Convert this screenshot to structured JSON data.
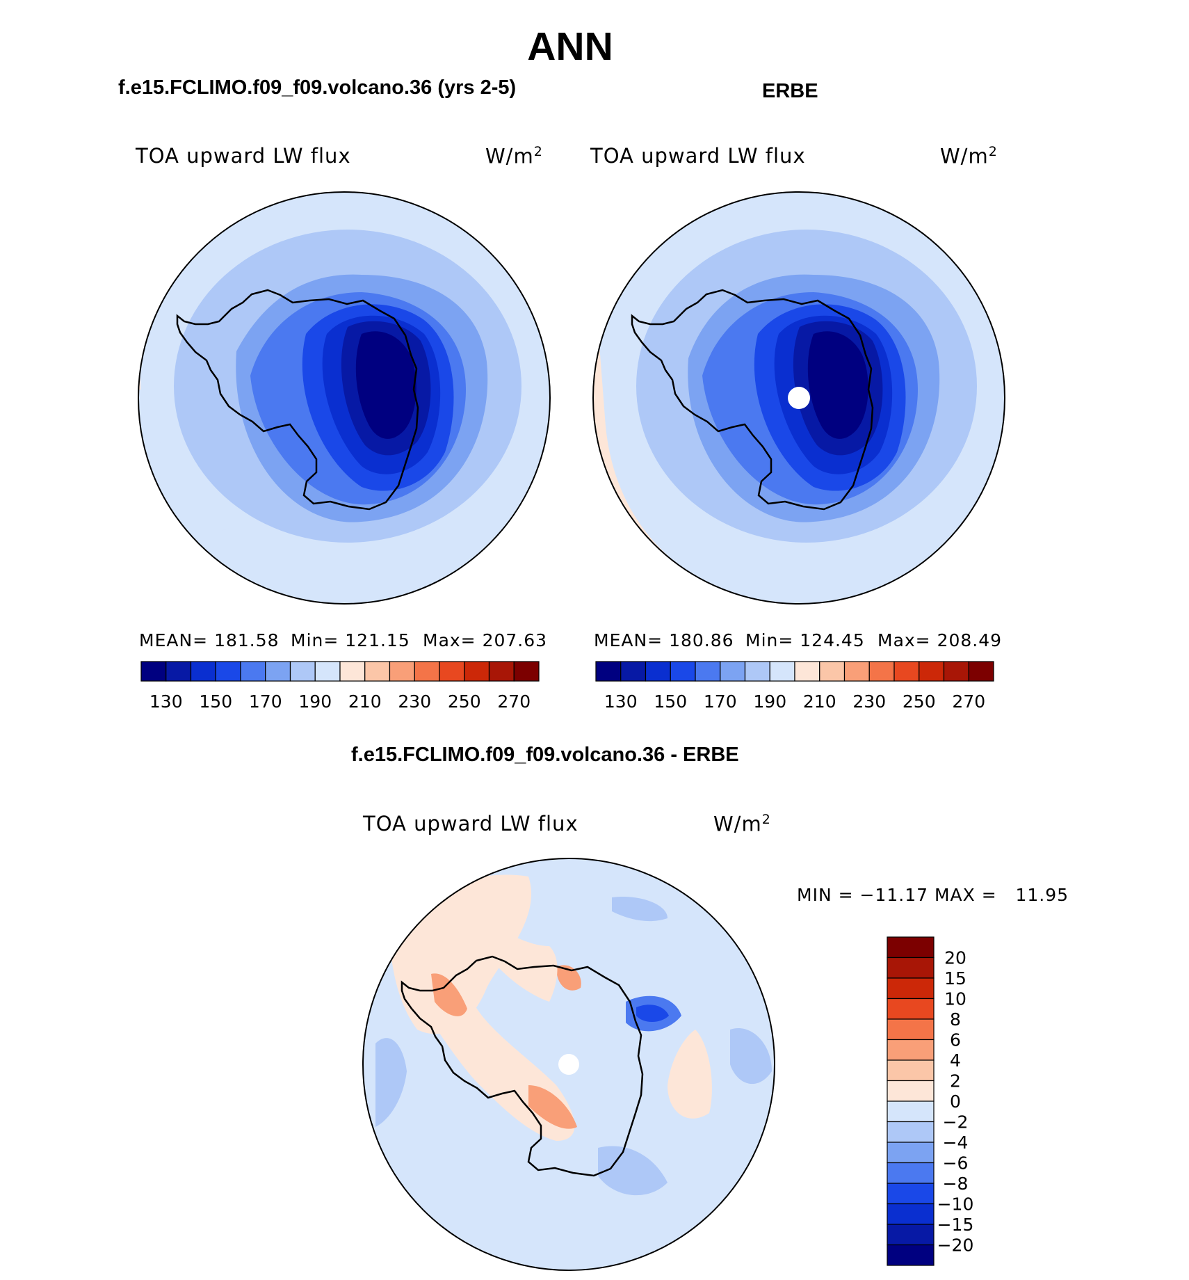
{
  "figure": {
    "title": "ANN",
    "panel_model_title": "f.e15.FCLIMO.f09_f09.volcano.36 (yrs 2-5)",
    "panel_obs_title": "ERBE",
    "panel_diff_title": "f.e15.FCLIMO.f09_f09.volcano.36 - ERBE"
  },
  "chart_data": [
    {
      "type": "heatmap",
      "title": "f.e15.FCLIMO.f09_f09.volcano.36 (yrs 2-5)",
      "variable": "TOA upward LW flux",
      "units": "W/m",
      "units_exp": "2",
      "projection": "south-polar-stereographic",
      "stats": {
        "mean": "MEAN=  181.58",
        "min": "Min=  121.15",
        "max": "Max=  207.63"
      },
      "levels": [
        130,
        140,
        150,
        160,
        170,
        180,
        190,
        200,
        210,
        220,
        230,
        240,
        250,
        260,
        270
      ],
      "tick_labels": [
        "130",
        "150",
        "170",
        "190",
        "210",
        "230",
        "250",
        "270"
      ],
      "colors": [
        "#000080",
        "#0719a5",
        "#0a2fd0",
        "#1a48e8",
        "#4b79f0",
        "#7ca3f2",
        "#aec8f7",
        "#d5e5fb",
        "#fde6d8",
        "#fbc6a8",
        "#f99f78",
        "#f47448",
        "#e84820",
        "#cc2808",
        "#a81606",
        "#7c0000"
      ]
    },
    {
      "type": "heatmap",
      "title": "ERBE",
      "variable": "TOA upward LW flux",
      "units": "W/m",
      "units_exp": "2",
      "projection": "south-polar-stereographic",
      "stats": {
        "mean": "MEAN=  180.86",
        "min": "Min=  124.45",
        "max": "Max=  208.49"
      },
      "levels": [
        130,
        140,
        150,
        160,
        170,
        180,
        190,
        200,
        210,
        220,
        230,
        240,
        250,
        260,
        270
      ],
      "tick_labels": [
        "130",
        "150",
        "170",
        "190",
        "210",
        "230",
        "250",
        "270"
      ],
      "colors": [
        "#000080",
        "#0719a5",
        "#0a2fd0",
        "#1a48e8",
        "#4b79f0",
        "#7ca3f2",
        "#aec8f7",
        "#d5e5fb",
        "#fde6d8",
        "#fbc6a8",
        "#f99f78",
        "#f47448",
        "#e84820",
        "#cc2808",
        "#a81606",
        "#7c0000"
      ]
    },
    {
      "type": "heatmap",
      "title": "f.e15.FCLIMO.f09_f09.volcano.36 - ERBE",
      "variable": "TOA upward LW flux",
      "units": "W/m",
      "units_exp": "2",
      "projection": "south-polar-stereographic",
      "stats": {
        "minmax": "MIN = −11.17 MAX =   11.95"
      },
      "levels": [
        -20,
        -15,
        -10,
        -8,
        -6,
        -4,
        -2,
        0,
        2,
        4,
        6,
        8,
        10,
        15,
        20
      ],
      "tick_labels": [
        "20",
        "15",
        "10",
        "8",
        "6",
        "4",
        "2",
        "0",
        "−2",
        "−4",
        "−6",
        "−8",
        "−10",
        "−15",
        "−20"
      ],
      "colors": [
        "#000080",
        "#0719a5",
        "#0a2fd0",
        "#1a48e8",
        "#4b79f0",
        "#7ca3f2",
        "#aec8f7",
        "#d5e5fb",
        "#fde6d8",
        "#fbc6a8",
        "#f99f78",
        "#f47448",
        "#e84820",
        "#cc2808",
        "#a81606",
        "#7c0000"
      ]
    }
  ]
}
